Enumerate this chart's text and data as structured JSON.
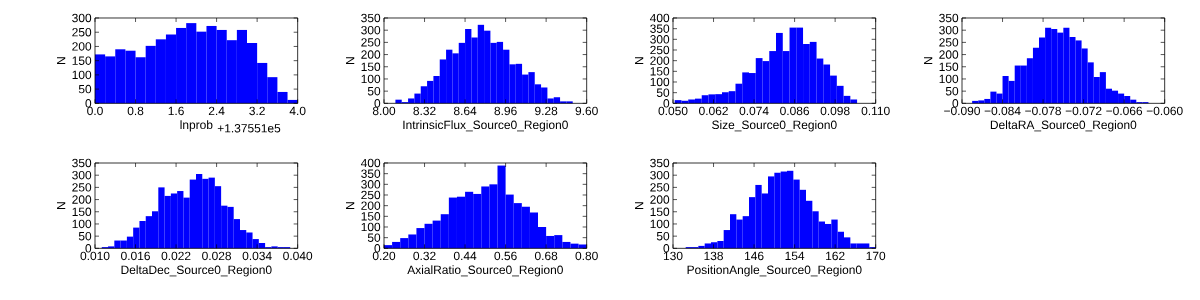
{
  "chart_data": [
    {
      "type": "histogram",
      "xlabel": "lnprob",
      "ylabel": "N",
      "color": "#0000ff",
      "annotations": [
        "+1.37551e5"
      ],
      "bins": [
        0,
        0.2,
        0.4,
        0.6,
        0.8,
        1.0,
        1.2,
        1.4,
        1.6,
        1.8,
        2.0,
        2.2,
        2.4,
        2.6,
        2.8,
        3.0,
        3.2,
        3.4,
        3.6,
        3.8,
        4.0
      ],
      "values": [
        172,
        165,
        190,
        185,
        162,
        202,
        225,
        242,
        265,
        282,
        252,
        272,
        258,
        222,
        258,
        212,
        142,
        92,
        40,
        12
      ],
      "xlim": [
        0,
        4.0
      ],
      "ylim": [
        0,
        300
      ],
      "xticks": [
        {
          "value": 0,
          "label": "0.0"
        },
        {
          "value": 0.8,
          "label": "0.8"
        },
        {
          "value": 1.6,
          "label": "1.6"
        },
        {
          "value": 2.4,
          "label": "2.4"
        },
        {
          "value": 3.2,
          "label": "3.2"
        },
        {
          "value": 4.0,
          "label": "4.0"
        }
      ],
      "yticks": [
        0,
        50,
        100,
        150,
        200,
        250,
        300
      ]
    },
    {
      "type": "histogram",
      "xlabel": "IntrinsicFlux_Source0_Region0",
      "ylabel": "N",
      "color": "#0000ff",
      "bins": [
        8.09,
        8.14,
        8.19,
        8.24,
        8.29,
        8.34,
        8.39,
        8.44,
        8.49,
        8.54,
        8.59,
        8.64,
        8.69,
        8.74,
        8.79,
        8.84,
        8.89,
        8.94,
        8.99,
        9.04,
        9.09,
        9.14,
        9.19,
        9.24,
        9.29,
        9.34,
        9.39,
        9.44,
        9.49
      ],
      "values": [
        15,
        5,
        20,
        40,
        70,
        92,
        112,
        180,
        220,
        205,
        248,
        305,
        270,
        322,
        298,
        248,
        252,
        220,
        160,
        162,
        118,
        128,
        78,
        65,
        20,
        25,
        8,
        8
      ],
      "xlim": [
        8.0,
        9.6
      ],
      "ylim": [
        0,
        350
      ],
      "xticks": [
        {
          "value": 8.0,
          "label": "8.00"
        },
        {
          "value": 8.32,
          "label": "8.32"
        },
        {
          "value": 8.64,
          "label": "8.64"
        },
        {
          "value": 8.96,
          "label": "8.96"
        },
        {
          "value": 9.28,
          "label": "9.28"
        },
        {
          "value": 9.6,
          "label": "9.60"
        }
      ],
      "yticks": [
        0,
        50,
        100,
        150,
        200,
        250,
        300,
        350
      ]
    },
    {
      "type": "histogram",
      "xlabel": "Size_Source0_Region0",
      "ylabel": "N",
      "color": "#0000ff",
      "bins": [
        0.0505,
        0.0525,
        0.0545,
        0.0565,
        0.0585,
        0.0605,
        0.0625,
        0.0645,
        0.0665,
        0.0685,
        0.0705,
        0.0725,
        0.0745,
        0.0765,
        0.0785,
        0.0805,
        0.0825,
        0.0845,
        0.0865,
        0.0885,
        0.0905,
        0.0925,
        0.0945,
        0.0965,
        0.0985,
        0.1005,
        0.1025,
        0.1045
      ],
      "values": [
        15,
        12,
        18,
        22,
        38,
        42,
        43,
        52,
        57,
        92,
        145,
        142,
        212,
        198,
        245,
        330,
        245,
        355,
        355,
        278,
        288,
        210,
        182,
        130,
        82,
        35,
        18
      ],
      "xlim": [
        0.05,
        0.11
      ],
      "ylim": [
        0,
        400
      ],
      "xticks": [
        {
          "value": 0.05,
          "label": "0.050"
        },
        {
          "value": 0.062,
          "label": "0.062"
        },
        {
          "value": 0.074,
          "label": "0.074"
        },
        {
          "value": 0.086,
          "label": "0.086"
        },
        {
          "value": 0.098,
          "label": "0.098"
        },
        {
          "value": 0.11,
          "label": "0.110"
        }
      ],
      "yticks": [
        0,
        50,
        100,
        150,
        200,
        250,
        300,
        350,
        400
      ]
    },
    {
      "type": "histogram",
      "xlabel": "DeltaRA_Source0_Region0",
      "ylabel": "N",
      "color": "#0000ff",
      "bins": [
        -0.0885,
        -0.0876,
        -0.0867,
        -0.0858,
        -0.0849,
        -0.084,
        -0.0831,
        -0.0822,
        -0.0813,
        -0.0804,
        -0.0795,
        -0.0786,
        -0.0777,
        -0.0768,
        -0.0759,
        -0.075,
        -0.0741,
        -0.0732,
        -0.0723,
        -0.0714,
        -0.0705,
        -0.0696,
        -0.0687,
        -0.0678,
        -0.0669,
        -0.066,
        -0.0651,
        -0.0642,
        -0.0633,
        -0.0624
      ],
      "values": [
        10,
        12,
        18,
        48,
        40,
        112,
        92,
        155,
        155,
        185,
        228,
        270,
        310,
        305,
        290,
        310,
        272,
        258,
        225,
        168,
        108,
        128,
        60,
        52,
        40,
        30,
        15,
        5,
        5
      ],
      "xlim": [
        -0.09,
        -0.06
      ],
      "ylim": [
        0,
        350
      ],
      "xticks": [
        {
          "value": -0.09,
          "label": "−0.090"
        },
        {
          "value": -0.084,
          "label": "−0.084"
        },
        {
          "value": -0.078,
          "label": "−0.078"
        },
        {
          "value": -0.072,
          "label": "−0.072"
        },
        {
          "value": -0.066,
          "label": "−0.066"
        },
        {
          "value": -0.06,
          "label": "−0.060"
        }
      ],
      "yticks": [
        0,
        50,
        100,
        150,
        200,
        250,
        300,
        350
      ]
    },
    {
      "type": "histogram",
      "xlabel": "DeltaDec_Source0_Region0",
      "ylabel": "N",
      "color": "#0000ff",
      "bins": [
        0.011,
        0.01193,
        0.01286,
        0.01379,
        0.01472,
        0.01565,
        0.01658,
        0.01751,
        0.01844,
        0.01937,
        0.0203,
        0.02123,
        0.02216,
        0.02309,
        0.02402,
        0.02495,
        0.02588,
        0.02681,
        0.02774,
        0.02867,
        0.0296,
        0.03053,
        0.03146,
        0.03239,
        0.03332,
        0.03425,
        0.03518,
        0.03611,
        0.03704,
        0.03797,
        0.0389
      ],
      "values": [
        5,
        8,
        32,
        32,
        48,
        85,
        112,
        132,
        152,
        250,
        215,
        225,
        235,
        208,
        282,
        305,
        285,
        290,
        255,
        175,
        170,
        120,
        75,
        65,
        38,
        22,
        5,
        8,
        5,
        5
      ],
      "xlim": [
        0.01,
        0.04
      ],
      "ylim": [
        0,
        350
      ],
      "xticks": [
        {
          "value": 0.01,
          "label": "0.010"
        },
        {
          "value": 0.016,
          "label": "0.016"
        },
        {
          "value": 0.022,
          "label": "0.022"
        },
        {
          "value": 0.028,
          "label": "0.028"
        },
        {
          "value": 0.034,
          "label": "0.034"
        },
        {
          "value": 0.04,
          "label": "0.040"
        }
      ],
      "yticks": [
        0,
        50,
        100,
        150,
        200,
        250,
        300,
        350
      ]
    },
    {
      "type": "histogram",
      "xlabel": "AxialRatio_Source0_Region0",
      "ylabel": "N",
      "color": "#0000ff",
      "bins": [
        0.2,
        0.224,
        0.248,
        0.272,
        0.296,
        0.32,
        0.344,
        0.368,
        0.392,
        0.416,
        0.44,
        0.464,
        0.488,
        0.512,
        0.536,
        0.56,
        0.584,
        0.608,
        0.632,
        0.656,
        0.68,
        0.704,
        0.728,
        0.752,
        0.776,
        0.8
      ],
      "values": [
        15,
        30,
        48,
        65,
        95,
        115,
        130,
        160,
        238,
        242,
        265,
        255,
        290,
        300,
        388,
        252,
        212,
        195,
        168,
        100,
        58,
        62,
        30,
        22,
        18
      ],
      "xlim": [
        0.2,
        0.8
      ],
      "ylim": [
        0,
        400
      ],
      "xticks": [
        {
          "value": 0.2,
          "label": "0.20"
        },
        {
          "value": 0.32,
          "label": "0.32"
        },
        {
          "value": 0.44,
          "label": "0.44"
        },
        {
          "value": 0.56,
          "label": "0.56"
        },
        {
          "value": 0.68,
          "label": "0.68"
        },
        {
          "value": 0.8,
          "label": "0.80"
        }
      ],
      "yticks": [
        0,
        50,
        100,
        150,
        200,
        250,
        300,
        350,
        400
      ]
    },
    {
      "type": "histogram",
      "xlabel": "PositionAngle_Source0_Region0",
      "ylabel": "N",
      "color": "#0000ff",
      "bins": [
        132.5,
        133.75,
        135,
        136.25,
        137.5,
        138.75,
        140,
        141.25,
        142.5,
        143.75,
        145,
        146.25,
        147.5,
        148.75,
        150,
        151.25,
        152.5,
        153.75,
        155,
        156.25,
        157.5,
        158.75,
        160,
        161.25,
        162.5,
        163.75,
        165,
        166.25,
        167.5,
        168.75,
        170
      ],
      "values": [
        5,
        5,
        10,
        20,
        25,
        30,
        75,
        140,
        118,
        132,
        210,
        260,
        225,
        295,
        310,
        315,
        318,
        282,
        240,
        195,
        152,
        110,
        100,
        118,
        68,
        45,
        20,
        20,
        20,
        5
      ],
      "xlim": [
        130,
        170
      ],
      "ylim": [
        0,
        350
      ],
      "xticks": [
        130,
        138,
        146,
        154,
        162,
        170
      ],
      "yticks": [
        0,
        50,
        100,
        150,
        200,
        250,
        300,
        350
      ]
    }
  ]
}
